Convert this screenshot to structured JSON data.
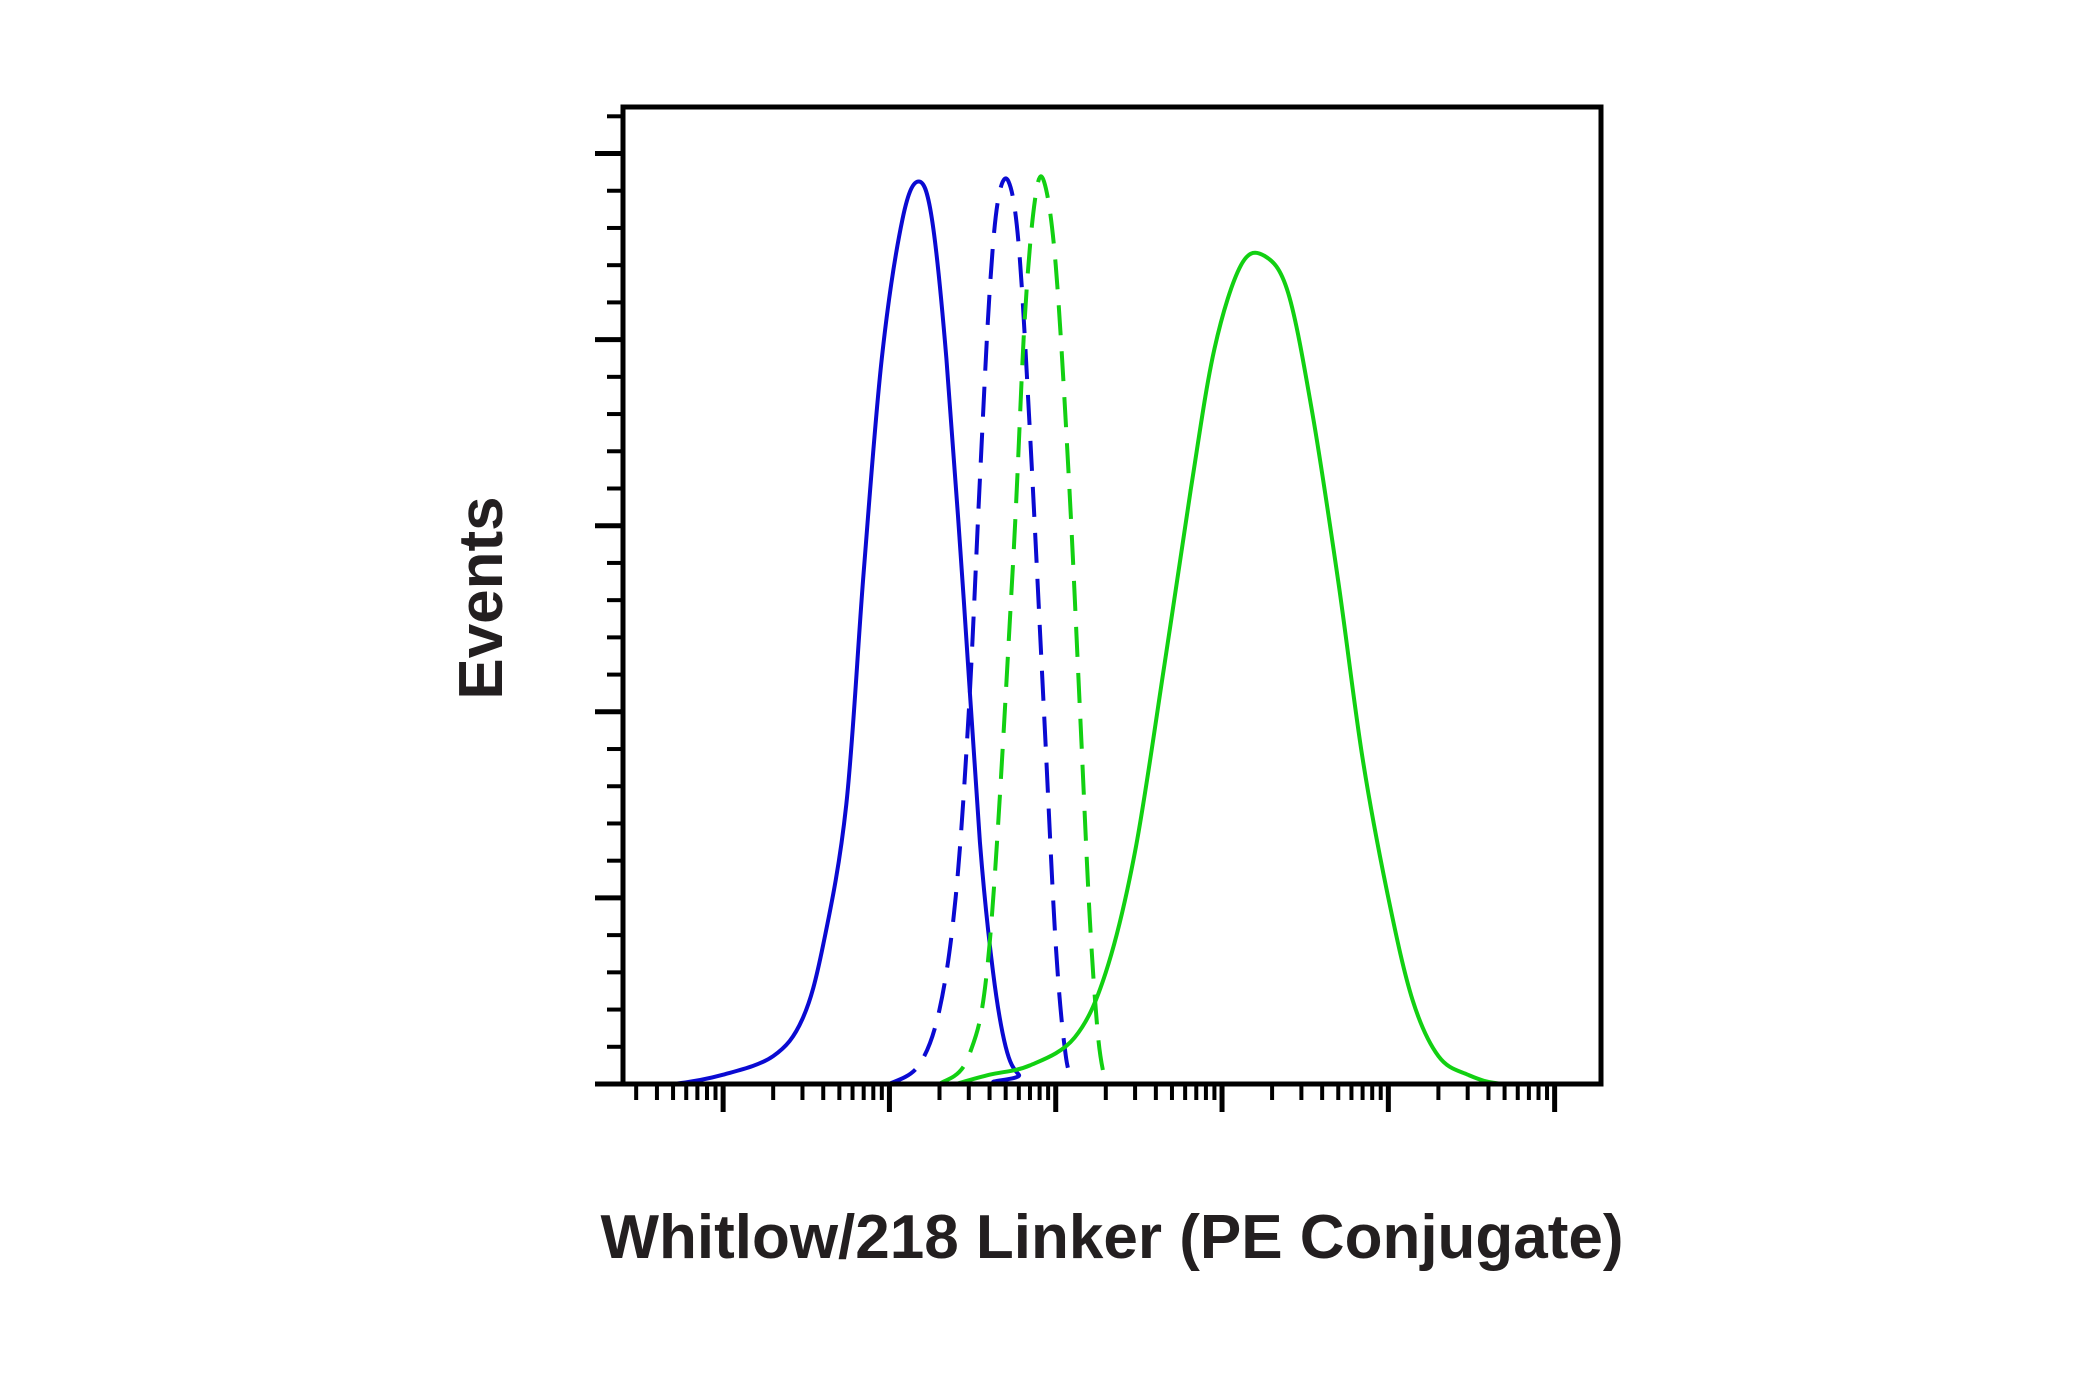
{
  "chart_data": {
    "type": "line",
    "title": "",
    "xlabel": "Whitlow/218 Linker (PE Conjugate)",
    "ylabel": "Events",
    "x_scale": "log",
    "x_decades": [
      1,
      10,
      100,
      1000,
      10000,
      100000
    ],
    "xlim": [
      0.25,
      190000
    ],
    "ylim": [
      0,
      105
    ],
    "y_major_ticks": [
      0,
      20,
      40,
      60,
      80,
      100
    ],
    "y_minor_ticks_per_major": 4,
    "grid": false,
    "legend": "none",
    "colors": {
      "blue": "#0a0ad2",
      "green": "#12d012",
      "axis": "#000000",
      "label": "#231f20"
    },
    "series": [
      {
        "color": "#0a0ad2",
        "style": "solid",
        "points": [
          [
            0.3,
            0
          ],
          [
            0.5,
            0
          ],
          [
            1,
            1
          ],
          [
            2,
            3
          ],
          [
            3,
            7
          ],
          [
            4,
            15
          ],
          [
            5.5,
            30
          ],
          [
            7,
            55
          ],
          [
            9,
            78
          ],
          [
            12,
            93
          ],
          [
            15,
            97
          ],
          [
            18,
            93
          ],
          [
            22,
            78
          ],
          [
            28,
            52
          ],
          [
            35,
            26
          ],
          [
            42,
            12
          ],
          [
            50,
            4
          ],
          [
            60,
            1
          ],
          [
            80,
            0
          ],
          [
            150000,
            0
          ]
        ]
      },
      {
        "color": "#0a0ad2",
        "style": "dashed",
        "points": [
          [
            10,
            0
          ],
          [
            15,
            2
          ],
          [
            20,
            8
          ],
          [
            25,
            20
          ],
          [
            30,
            40
          ],
          [
            35,
            65
          ],
          [
            40,
            85
          ],
          [
            45,
            95
          ],
          [
            52,
            97
          ],
          [
            60,
            90
          ],
          [
            70,
            70
          ],
          [
            85,
            40
          ],
          [
            100,
            15
          ],
          [
            115,
            3
          ],
          [
            130,
            0
          ]
        ]
      },
      {
        "color": "#12d012",
        "style": "dashed",
        "points": [
          [
            20,
            0
          ],
          [
            30,
            3
          ],
          [
            40,
            15
          ],
          [
            55,
            55
          ],
          [
            65,
            82
          ],
          [
            75,
            95
          ],
          [
            85,
            97
          ],
          [
            100,
            88
          ],
          [
            120,
            65
          ],
          [
            140,
            40
          ],
          [
            160,
            18
          ],
          [
            180,
            5
          ],
          [
            200,
            0
          ]
        ]
      },
      {
        "color": "#12d012",
        "style": "solid",
        "points": [
          [
            25,
            0
          ],
          [
            40,
            1
          ],
          [
            70,
            2
          ],
          [
            130,
            5
          ],
          [
            200,
            12
          ],
          [
            300,
            25
          ],
          [
            450,
            45
          ],
          [
            650,
            64
          ],
          [
            900,
            79
          ],
          [
            1300,
            88
          ],
          [
            1800,
            89
          ],
          [
            2500,
            85
          ],
          [
            3500,
            72
          ],
          [
            5000,
            54
          ],
          [
            7000,
            35
          ],
          [
            10000,
            20
          ],
          [
            14000,
            9
          ],
          [
            20000,
            3
          ],
          [
            30000,
            1
          ],
          [
            50000,
            0
          ],
          [
            150000,
            0
          ]
        ]
      }
    ]
  }
}
